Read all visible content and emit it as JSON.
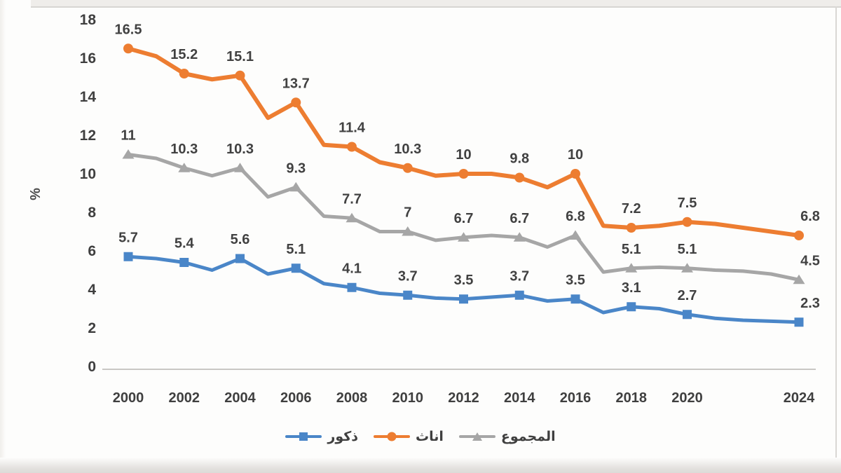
{
  "page": {
    "background": "#fdfdfc"
  },
  "chart_data": {
    "type": "line",
    "title": "",
    "xlabel": "",
    "ylabel": "%",
    "ylim": [
      0,
      18
    ],
    "y_ticks": [
      0,
      2,
      4,
      6,
      8,
      10,
      12,
      14,
      16,
      18
    ],
    "grid": false,
    "legend_position": "bottom",
    "axis_line_color": "#c9c7c4",
    "tick_text_color": "#3f3f3f",
    "data_label_color": "#414141",
    "categories": [
      "2000",
      "2002",
      "2004",
      "2006",
      "2008",
      "2010",
      "2012",
      "2014",
      "2016",
      "2018",
      "2020",
      "2024"
    ],
    "category_years": [
      2000,
      2002,
      2004,
      2006,
      2008,
      2010,
      2012,
      2014,
      2016,
      2018,
      2020,
      2024
    ],
    "yearly_x_start": 2000,
    "yearly_x_end": 2024,
    "draw_order": [
      "totals",
      "females",
      "males"
    ],
    "series": [
      {
        "id": "males",
        "name": "ذكور",
        "color": "#4a86c8",
        "marker": "square",
        "stroke_width": 5,
        "values": [
          5.7,
          5.4,
          5.6,
          5.1,
          4.1,
          3.7,
          3.5,
          3.7,
          3.5,
          3.1,
          2.7,
          2.3
        ],
        "labels": [
          "5.7",
          "5.4",
          "5.6",
          "5.1",
          "4.1",
          "3.7",
          "3.5",
          "3.7",
          "3.5",
          "3.1",
          "2.7",
          "2.3"
        ],
        "yearly_values": [
          5.7,
          5.6,
          5.4,
          5.0,
          5.6,
          4.8,
          5.1,
          4.3,
          4.1,
          3.8,
          3.7,
          3.55,
          3.5,
          3.6,
          3.7,
          3.4,
          3.5,
          2.8,
          3.1,
          3.0,
          2.7,
          2.5,
          2.4,
          2.35,
          2.3
        ]
      },
      {
        "id": "females",
        "name": "اناث",
        "color": "#ed7d31",
        "marker": "circle",
        "stroke_width": 6,
        "values": [
          16.5,
          15.2,
          15.1,
          13.7,
          11.4,
          10.3,
          10,
          9.8,
          10,
          7.2,
          7.5,
          6.8
        ],
        "labels": [
          "16.5",
          "15.2",
          "15.1",
          "13.7",
          "11.4",
          "10.3",
          "10",
          "9.8",
          "10",
          "7.2",
          "7.5",
          "6.8"
        ],
        "yearly_values": [
          16.5,
          16.1,
          15.2,
          14.9,
          15.1,
          12.9,
          13.7,
          11.5,
          11.4,
          10.6,
          10.3,
          9.9,
          10.0,
          10.0,
          9.8,
          9.3,
          10.0,
          7.3,
          7.2,
          7.3,
          7.5,
          7.4,
          7.2,
          7.0,
          6.8
        ]
      },
      {
        "id": "totals",
        "name": "المجموع",
        "color": "#a6a6a6",
        "marker": "triangle",
        "stroke_width": 5,
        "values": [
          11,
          10.3,
          10.3,
          9.3,
          7.7,
          7,
          6.7,
          6.7,
          6.8,
          5.1,
          5.1,
          4.5
        ],
        "labels": [
          "11",
          "10.3",
          "10.3",
          "9.3",
          "7.7",
          "7",
          "6.7",
          "6.7",
          "6.8",
          "5.1",
          "5.1",
          "4.5"
        ],
        "yearly_values": [
          11.0,
          10.8,
          10.3,
          9.9,
          10.3,
          8.8,
          9.3,
          7.8,
          7.7,
          7.0,
          7.0,
          6.55,
          6.7,
          6.8,
          6.7,
          6.2,
          6.8,
          4.9,
          5.1,
          5.15,
          5.1,
          5.0,
          4.95,
          4.8,
          4.5
        ]
      }
    ],
    "legend": [
      {
        "series": "males",
        "label": "ذكور"
      },
      {
        "series": "females",
        "label": "اناث"
      },
      {
        "series": "totals",
        "label": "المجموع"
      }
    ]
  }
}
